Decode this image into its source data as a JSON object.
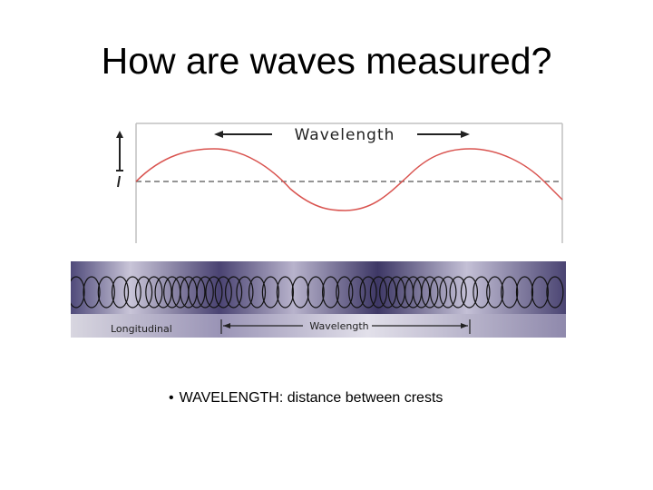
{
  "slide": {
    "title": "How are waves measured?"
  },
  "transverse_diagram": {
    "wavelength_label": "Wavelength",
    "wave_color": "#d9534f",
    "frame_color": "#bbbbbb"
  },
  "longitudinal_diagram": {
    "type_label": "Longitudinal",
    "wavelength_label": "Wavelength",
    "band_color": "#6a5f8c"
  },
  "bullet": {
    "dot": "•",
    "text": "WAVELENGTH: distance between crests"
  }
}
